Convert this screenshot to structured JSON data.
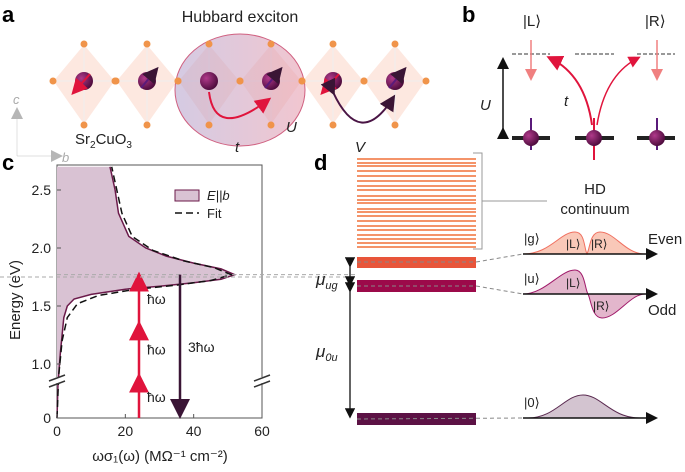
{
  "panel_labels": {
    "a": "a",
    "b": "b",
    "c": "c",
    "d": "d"
  },
  "panel_a": {
    "title": "Hubbard exciton",
    "compound_prefix": "Sr",
    "compound_sub1": "2",
    "compound_mid": "CuO",
    "compound_sub2": "3",
    "axis_c": "c",
    "axis_b": "b",
    "label_t": "t",
    "label_U": "U",
    "label_V": "V"
  },
  "panel_b": {
    "state_L": "|L⟩",
    "state_R": "|R⟩",
    "label_U": "U",
    "label_t": "t"
  },
  "panel_d": {
    "continuum_line1": "HD",
    "continuum_line2": "continuum",
    "state_g": "|g⟩",
    "state_u": "|u⟩",
    "state_0": "|0⟩",
    "state_L": "|L⟩",
    "state_R": "|R⟩",
    "even": "Even",
    "odd": "Odd",
    "mu_ug": "μ",
    "mu_ug_sub": "ug",
    "mu_0u": "μ",
    "mu_0u_sub": "0u"
  },
  "colors": {
    "exciton_fill": "#d9c2d3",
    "curve": "#6b1a4a",
    "photon": "#e0143c",
    "emission": "#3a1535",
    "continuum": "#f4946a",
    "level_g": "#e8553a",
    "level_u": "#9c0a4a",
    "level_0": "#5c1245"
  },
  "chart_data": {
    "type": "area",
    "xlabel": "ωσ₁(ω) (MΩ⁻¹ cm⁻²)",
    "ylabel": "Energy (eV)",
    "xlim": [
      0,
      60
    ],
    "ylim": [
      0,
      2.7
    ],
    "y_axis_break": true,
    "xticks": [
      "0",
      "20",
      "40",
      "60"
    ],
    "yticks": [
      "0",
      "1.0",
      "1.5",
      "2.0",
      "2.5"
    ],
    "legend_position": "top-right",
    "series": [
      {
        "name": "E||b",
        "style": "filled",
        "points": [
          [
            0,
            0
          ],
          [
            0.3,
            0.85
          ],
          [
            1,
            1.1
          ],
          [
            2,
            1.4
          ],
          [
            3,
            1.5
          ],
          [
            5,
            1.56
          ],
          [
            10,
            1.6
          ],
          [
            20,
            1.645
          ],
          [
            30,
            1.67
          ],
          [
            40,
            1.7
          ],
          [
            48,
            1.73
          ],
          [
            52,
            1.77
          ],
          [
            48,
            1.82
          ],
          [
            40,
            1.87
          ],
          [
            32,
            1.93
          ],
          [
            26,
            2.0
          ],
          [
            21,
            2.1
          ],
          [
            18,
            2.3
          ],
          [
            17,
            2.5
          ],
          [
            15.5,
            2.7
          ]
        ]
      },
      {
        "name": "Fit",
        "style": "dashed",
        "points": [
          [
            0,
            0
          ],
          [
            0.5,
            0.9
          ],
          [
            1.5,
            1.2
          ],
          [
            3,
            1.4
          ],
          [
            6,
            1.52
          ],
          [
            12,
            1.59
          ],
          [
            22,
            1.64
          ],
          [
            35,
            1.68
          ],
          [
            45,
            1.72
          ],
          [
            51,
            1.77
          ],
          [
            46,
            1.83
          ],
          [
            37,
            1.89
          ],
          [
            28,
            1.98
          ],
          [
            22,
            2.1
          ],
          [
            19,
            2.3
          ],
          [
            17.5,
            2.5
          ],
          [
            16,
            2.7
          ]
        ]
      }
    ],
    "annotations": {
      "photon": "ħω",
      "emission": "3ħω",
      "photon_x": 24,
      "photon_steps": [
        0.9,
        1.35,
        1.77
      ],
      "emission_x": 36,
      "resonance_energy": 1.77
    }
  }
}
